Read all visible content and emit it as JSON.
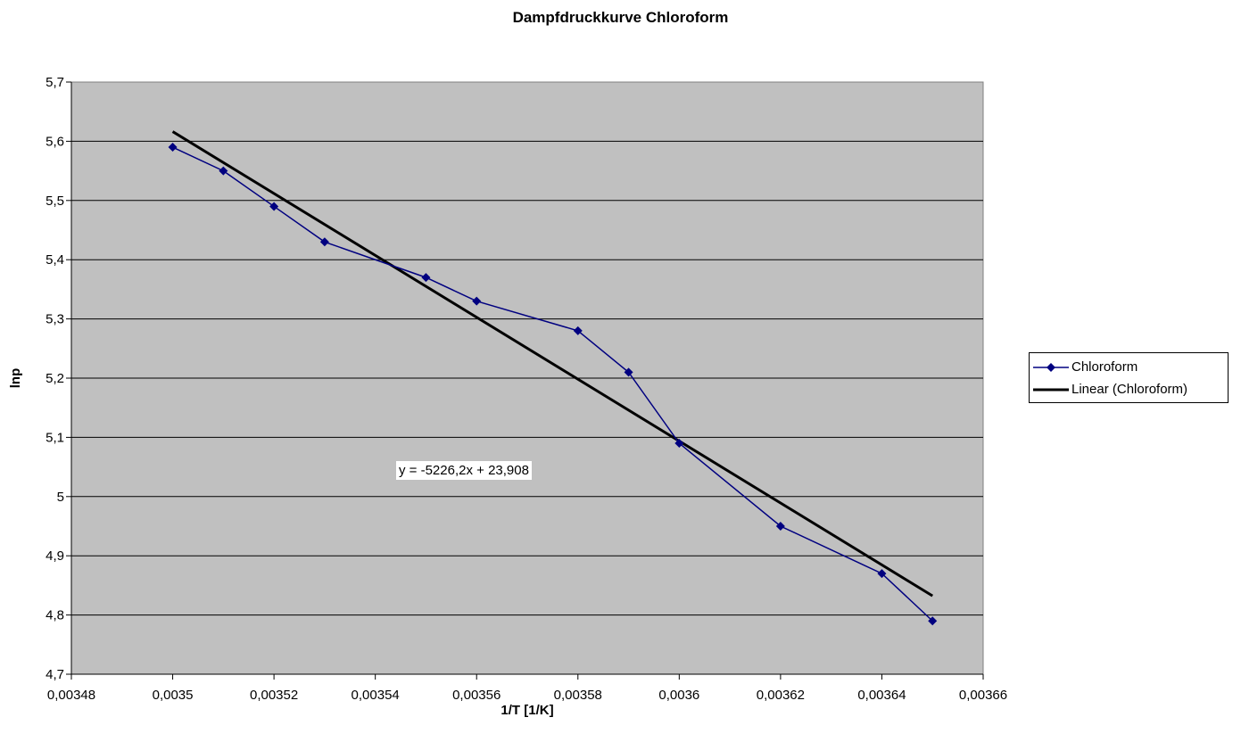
{
  "chart_data": {
    "type": "scatter",
    "title": "Dampfdruckkurve Chloroform",
    "xlabel": "1/T [1/K]",
    "ylabel": "lnp",
    "xlim": [
      0.00348,
      0.00366
    ],
    "ylim": [
      4.7,
      5.7
    ],
    "x_ticks": [
      "0,00348",
      "0,0035",
      "0,00352",
      "0,00354",
      "0,00356",
      "0,00358",
      "0,0036",
      "0,00362",
      "0,00364",
      "0,00366"
    ],
    "y_ticks": [
      "4,7",
      "4,8",
      "4,9",
      "5",
      "5,1",
      "5,2",
      "5,3",
      "5,4",
      "5,5",
      "5,6",
      "5,7"
    ],
    "grid": "horizontal",
    "plot_background": "#c0c0c0",
    "series": [
      {
        "name": "Chloroform",
        "color": "#000080",
        "marker": "diamond",
        "x": [
          0.0035,
          0.00351,
          0.00352,
          0.00353,
          0.00355,
          0.00356,
          0.00358,
          0.00359,
          0.0036,
          0.00362,
          0.00364,
          0.00365
        ],
        "y": [
          5.59,
          5.55,
          5.49,
          5.43,
          5.37,
          5.33,
          5.28,
          5.21,
          5.09,
          4.95,
          4.87,
          4.79
        ]
      }
    ],
    "trendline": {
      "name": "Linear (Chloroform)",
      "color": "#000000",
      "slope": -5226.2,
      "intercept": 23.908,
      "x_range": [
        0.0035,
        0.00365
      ],
      "equation": "y = -5226,2x + 23,908"
    },
    "legend": {
      "position": "right",
      "entries": [
        "Chloroform",
        "Linear (Chloroform)"
      ]
    }
  }
}
